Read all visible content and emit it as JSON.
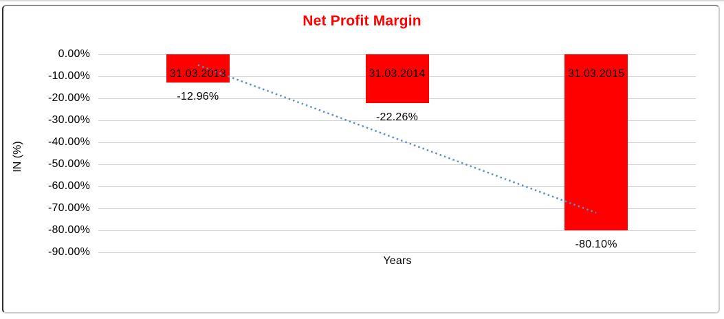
{
  "chart_data": {
    "type": "bar",
    "title": "Net Profit Margin",
    "xlabel": "Years",
    "ylabel": "IN (%)",
    "categories": [
      "31.03.2013",
      "31.03.2014",
      "31.03.2015"
    ],
    "values": [
      -12.96,
      -22.26,
      -80.1
    ],
    "data_labels": [
      "-12.96%",
      "-22.26%",
      "-80.10%"
    ],
    "ylim": [
      -90,
      0
    ],
    "ytick_labels": [
      "0.00%",
      "-10.00%",
      "-20.00%",
      "-30.00%",
      "-40.00%",
      "-50.00%",
      "-60.00%",
      "-70.00%",
      "-80.00%",
      "-90.00%"
    ],
    "grid": true,
    "legend": false,
    "trendline": {
      "type": "linear",
      "style": "dotted",
      "span": "first-to-last-category"
    },
    "colors": {
      "bar": "#ff0000",
      "title": "#ff0000",
      "trendline": "#5b8dc8",
      "gridline": "#d3d3d3",
      "text": "#000000"
    }
  }
}
